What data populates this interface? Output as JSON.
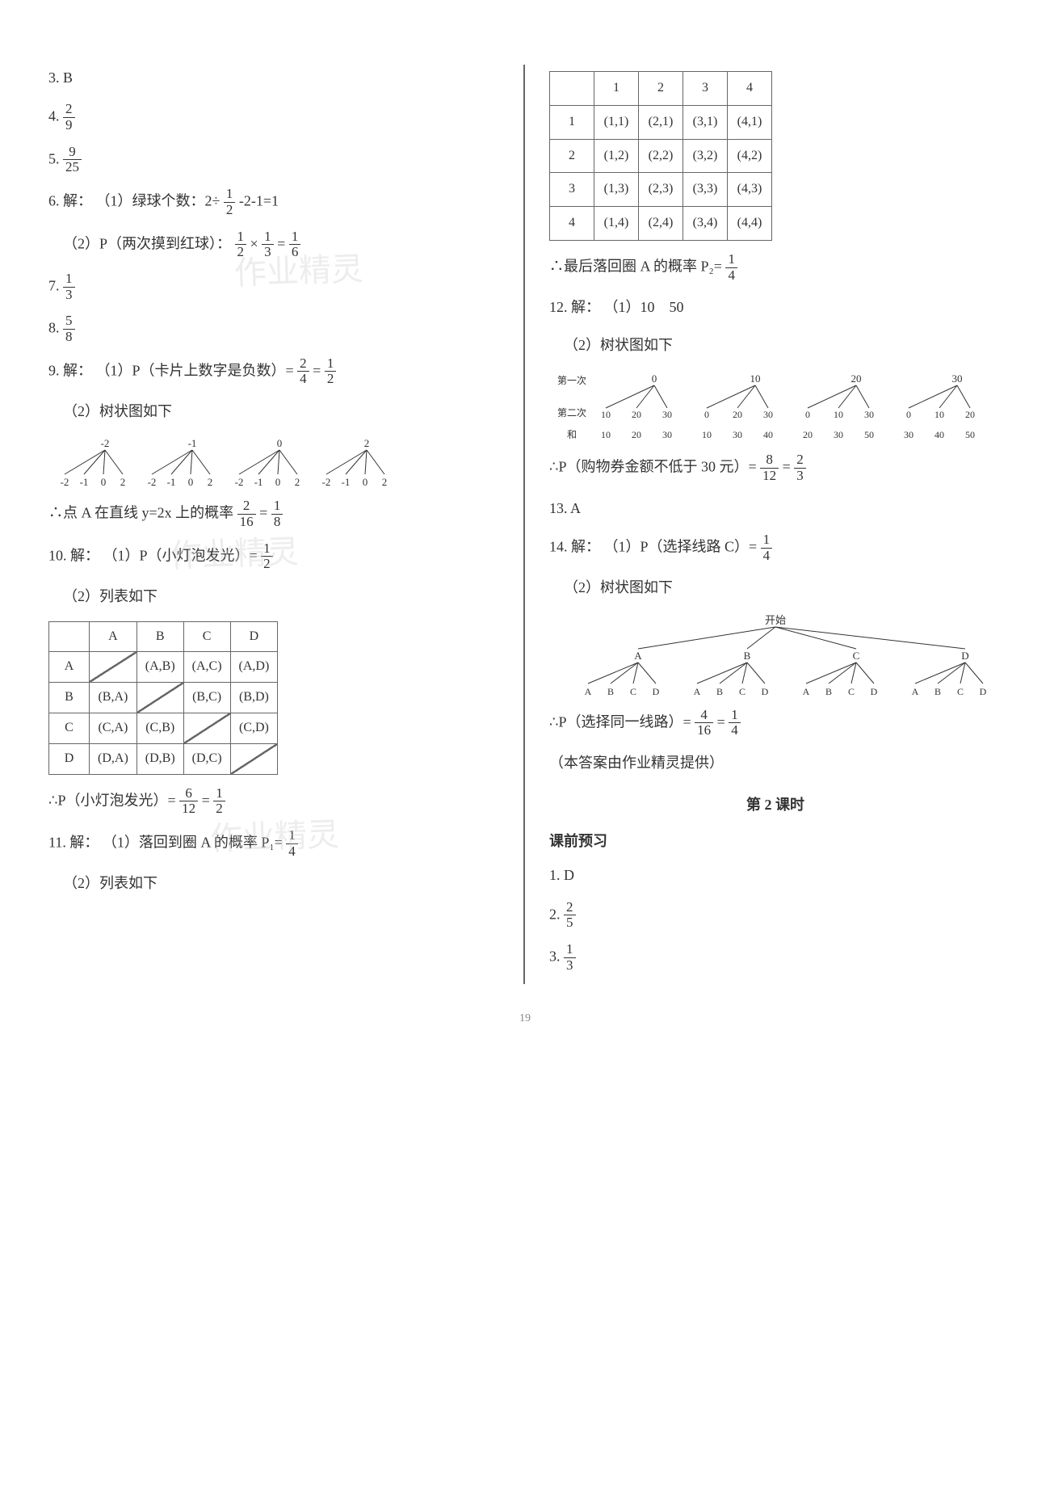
{
  "left": {
    "q3": "3.  B",
    "q4_prefix": "4.  ",
    "q4_frac": {
      "num": "2",
      "den": "9"
    },
    "q5_prefix": "5.  ",
    "q5_frac": {
      "num": "9",
      "den": "25"
    },
    "q6_label": "6.  解：",
    "q6_1a": "（1）绿球个数：2÷",
    "q6_1_frac1": {
      "num": "1",
      "den": "2"
    },
    "q6_1b": " -2-1=1",
    "q6_2a": "（2）P（两次摸到红球）：",
    "q6_2_frac1": {
      "num": "1",
      "den": "2"
    },
    "q6_2_times": "×",
    "q6_2_frac2": {
      "num": "1",
      "den": "3"
    },
    "q6_2_eq": "=",
    "q6_2_frac3": {
      "num": "1",
      "den": "6"
    },
    "q7_prefix": "7.  ",
    "q7_frac": {
      "num": "1",
      "den": "3"
    },
    "q8_prefix": "8.  ",
    "q8_frac": {
      "num": "5",
      "den": "8"
    },
    "q9_label": "9.  解：",
    "q9_1a": "（1）P（卡片上数字是负数）= ",
    "q9_1_frac1": {
      "num": "2",
      "den": "4"
    },
    "q9_1_eq": " = ",
    "q9_1_frac2": {
      "num": "1",
      "den": "2"
    },
    "q9_2": "（2）树状图如下",
    "q9_tree": {
      "roots": [
        "-2",
        "-1",
        "0",
        "2"
      ],
      "leaves": [
        "-2",
        "-1",
        "0",
        "2"
      ]
    },
    "q9_conc_a": "∴点 A 在直线 y=2x 上的概率 ",
    "q9_conc_frac1": {
      "num": "2",
      "den": "16"
    },
    "q9_conc_eq": " = ",
    "q9_conc_frac2": {
      "num": "1",
      "den": "8"
    },
    "q10_label": "10.  解：",
    "q10_1a": "（1）P（小灯泡发光）= ",
    "q10_1_frac": {
      "num": "1",
      "den": "2"
    },
    "q10_2": "（2）列表如下",
    "q10_table": {
      "headers": [
        "",
        "A",
        "B",
        "C",
        "D"
      ],
      "rows": [
        [
          "A",
          "DIAG",
          "(A,B)",
          "(A,C)",
          "(A,D)"
        ],
        [
          "B",
          "(B,A)",
          "DIAG",
          "(B,C)",
          "(B,D)"
        ],
        [
          "C",
          "(C,A)",
          "(C,B)",
          "DIAG",
          "(C,D)"
        ],
        [
          "D",
          "(D,A)",
          "(D,B)",
          "(D,C)",
          "DIAG"
        ]
      ]
    },
    "q10_conc_a": "∴P（小灯泡发光）= ",
    "q10_conc_frac1": {
      "num": "6",
      "den": "12"
    },
    "q10_conc_eq": " = ",
    "q10_conc_frac2": {
      "num": "1",
      "den": "2"
    },
    "q11_label": "11.  解：",
    "q11_1a": "（1）落回到圈 A 的概率 P₁= ",
    "q11_1_frac": {
      "num": "1",
      "den": "4"
    },
    "q11_2": "（2）列表如下"
  },
  "right": {
    "q11_table": {
      "headers": [
        "",
        "1",
        "2",
        "3",
        "4"
      ],
      "rows": [
        [
          "1",
          "(1,1)",
          "(2,1)",
          "(3,1)",
          "(4,1)"
        ],
        [
          "2",
          "(1,2)",
          "(2,2)",
          "(3,2)",
          "(4,2)"
        ],
        [
          "3",
          "(1,3)",
          "(2,3)",
          "(3,3)",
          "(4,3)"
        ],
        [
          "4",
          "(1,4)",
          "(2,4)",
          "(3,4)",
          "(4,4)"
        ]
      ]
    },
    "q11_conc_a": "∴最后落回圈 A 的概率 P₂= ",
    "q11_conc_frac": {
      "num": "1",
      "den": "4"
    },
    "q12_label": "12.  解：",
    "q12_1": "（1）10　50",
    "q12_2": "（2）树状图如下",
    "q12_tree": {
      "row1_label": "第一次",
      "row2_label": "第二次",
      "row3_label": "和",
      "roots": [
        "0",
        "10",
        "20",
        "30"
      ],
      "leaves": [
        [
          "10",
          "20",
          "30"
        ],
        [
          "0",
          "20",
          "30"
        ],
        [
          "0",
          "10",
          "30"
        ],
        [
          "0",
          "10",
          "20"
        ]
      ],
      "sums": [
        [
          "10",
          "20",
          "30"
        ],
        [
          "10",
          "30",
          "40"
        ],
        [
          "20",
          "30",
          "50"
        ],
        [
          "30",
          "40",
          "50"
        ]
      ]
    },
    "q12_conc_a": "∴P（购物券金额不低于 30 元）= ",
    "q12_conc_frac1": {
      "num": "8",
      "den": "12"
    },
    "q12_conc_eq": " = ",
    "q12_conc_frac2": {
      "num": "2",
      "den": "3"
    },
    "q13": "13.  A",
    "q14_label": "14.  解：",
    "q14_1a": "（1）P（选择线路 C）= ",
    "q14_1_frac": {
      "num": "1",
      "den": "4"
    },
    "q14_2": "（2）树状图如下",
    "q14_tree": {
      "root": "开始",
      "level1": [
        "A",
        "B",
        "C",
        "D"
      ],
      "level2": [
        "A",
        "B",
        "C",
        "D"
      ]
    },
    "q14_conc_a": "∴P（选择同一线路）= ",
    "q14_conc_frac1": {
      "num": "4",
      "den": "16"
    },
    "q14_conc_eq": " = ",
    "q14_conc_frac2": {
      "num": "1",
      "den": "4"
    },
    "credit": "（本答案由作业精灵提供）",
    "section": "第 2 课时",
    "subsection": "课前预习",
    "p1": "1.  D",
    "p2_prefix": "2.  ",
    "p2_frac": {
      "num": "2",
      "den": "5"
    },
    "p3_prefix": "3.  ",
    "p3_frac": {
      "num": "1",
      "den": "3"
    }
  },
  "page_number": "19",
  "watermarks": [
    "作业精灵",
    "作业精灵",
    "作业精灵"
  ]
}
